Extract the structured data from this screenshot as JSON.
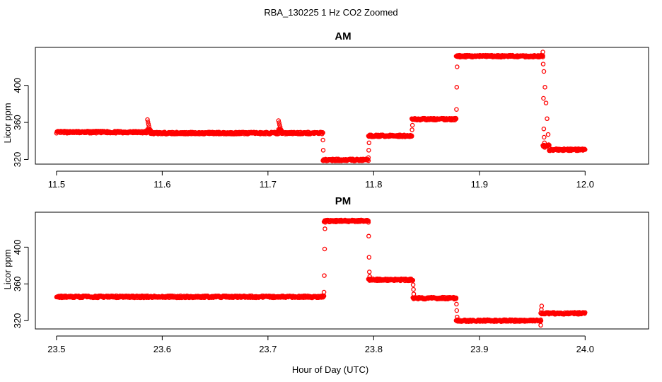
{
  "figure": {
    "title": "RBA_130225  1 Hz CO2 Zoomed",
    "xlabel": "Hour of Day (UTC)"
  },
  "chart_data": [
    {
      "type": "scatter",
      "title": "AM",
      "xlabel": "",
      "ylabel": "Licor ppm",
      "xlim": [
        11.48,
        12.06
      ],
      "ylim": [
        315,
        441
      ],
      "xticks": [
        11.5,
        11.6,
        11.7,
        11.8,
        11.9,
        12.0
      ],
      "xtick_labels": [
        "11.5",
        "11.6",
        "11.7",
        "11.8",
        "11.9",
        "12.0"
      ],
      "yticks": [
        320,
        360,
        400
      ],
      "ytick_labels": [
        "320",
        "360",
        "400"
      ],
      "grid": false,
      "color": "#ff0000",
      "segments": [
        {
          "x0": 11.5,
          "x1": 11.586,
          "y": 349.5
        },
        {
          "x0": 11.586,
          "x1": 11.589,
          "y": 352,
          "spike": [
            363,
            348
          ]
        },
        {
          "x0": 11.589,
          "x1": 11.71,
          "y": 348.5
        },
        {
          "x0": 11.71,
          "x1": 11.713,
          "y": 352,
          "spike": [
            362,
            348
          ]
        },
        {
          "x0": 11.713,
          "x1": 11.752,
          "y": 348.5
        },
        {
          "x0": 11.752,
          "x1": 11.795,
          "y": 319.5
        },
        {
          "x0": 11.795,
          "x1": 11.836,
          "y": 345.5
        },
        {
          "x0": 11.836,
          "x1": 11.878,
          "y": 363.5
        },
        {
          "x0": 11.878,
          "x1": 11.96,
          "y": 431.5
        },
        {
          "x0": 11.96,
          "x1": 11.966,
          "y": 335,
          "spike": [
            432,
            330
          ]
        },
        {
          "x0": 11.966,
          "x1": 12.0,
          "y": 330.5
        }
      ],
      "transitions": [
        {
          "x": 11.752,
          "values": [
            341,
            330,
            320
          ]
        },
        {
          "x": 11.795,
          "values": [
            322,
            330,
            338,
            345
          ]
        },
        {
          "x": 11.836,
          "values": [
            345,
            352,
            357,
            363
          ]
        },
        {
          "x": 11.878,
          "values": [
            364,
            374,
            398,
            420,
            431
          ]
        },
        {
          "x": 11.96,
          "values": [
            436,
            423,
            386,
            353,
            344,
            338,
            333
          ]
        }
      ]
    },
    {
      "type": "scatter",
      "title": "PM",
      "xlabel": "",
      "ylabel": "Licor ppm",
      "xlim": [
        23.48,
        24.06
      ],
      "ylim": [
        311,
        438
      ],
      "xticks": [
        23.5,
        23.6,
        23.7,
        23.8,
        23.9,
        24.0
      ],
      "xtick_labels": [
        "23.5",
        "23.6",
        "23.7",
        "23.8",
        "23.9",
        "24.0"
      ],
      "yticks": [
        320,
        360,
        400
      ],
      "ytick_labels": [
        "320",
        "360",
        "400"
      ],
      "grid": false,
      "color": "#ff0000",
      "segments": [
        {
          "x0": 23.5,
          "x1": 23.753,
          "y": 346
        },
        {
          "x0": 23.753,
          "x1": 23.795,
          "y": 428.5
        },
        {
          "x0": 23.795,
          "x1": 23.837,
          "y": 364.5
        },
        {
          "x0": 23.837,
          "x1": 23.878,
          "y": 344.5
        },
        {
          "x0": 23.878,
          "x1": 23.958,
          "y": 320
        },
        {
          "x0": 23.958,
          "x1": 24.0,
          "y": 328
        }
      ],
      "transitions": [
        {
          "x": 23.753,
          "values": [
            351,
            369,
            398,
            420,
            427
          ]
        },
        {
          "x": 23.795,
          "values": [
            427,
            412,
            389,
            373,
            368,
            365
          ]
        },
        {
          "x": 23.837,
          "values": [
            364,
            359,
            354,
            349,
            345
          ]
        },
        {
          "x": 23.878,
          "values": [
            344,
            338,
            331,
            324,
            321
          ]
        },
        {
          "x": 23.958,
          "values": [
            315,
            320,
            332,
            336
          ]
        }
      ]
    }
  ]
}
